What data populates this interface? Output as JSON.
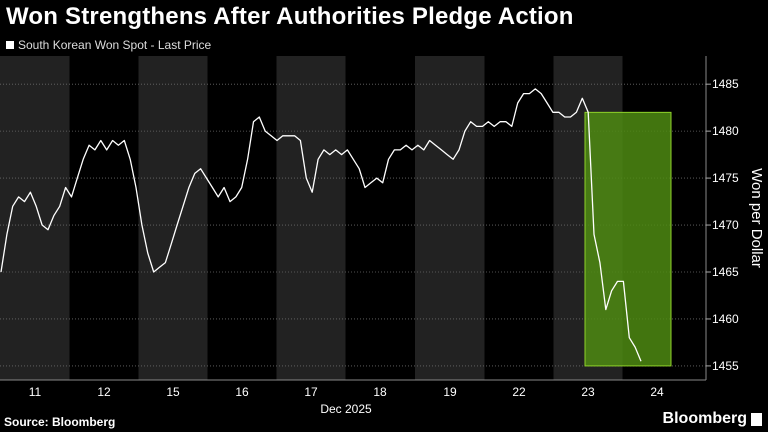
{
  "header": {
    "title": "Won Strengthens After Authorities Pledge Action",
    "legend_label": "South Korean Won Spot - Last Price"
  },
  "footer": {
    "source": "Source: Bloomberg",
    "brand": "Bloomberg"
  },
  "colors": {
    "background": "#000000",
    "line": "#ffffff",
    "shade_band": "#222222",
    "highlight_fill": "#4e8a12",
    "highlight_border": "#8fd22a"
  },
  "chart_data": {
    "type": "line",
    "series": [
      {
        "name": "South Korean Won Spot - Last Price",
        "values": [
          1465,
          1469,
          1472,
          1473,
          1472.5,
          1473.5,
          1472,
          1470,
          1469.5,
          1471,
          1472,
          1474,
          1473,
          1475,
          1477,
          1478.5,
          1478,
          1479,
          1478,
          1479,
          1478.5,
          1479,
          1477,
          1474,
          1470,
          1467,
          1465,
          1465.5,
          1466,
          1468,
          1470,
          1472,
          1474,
          1475.5,
          1476,
          1475,
          1474,
          1473,
          1474,
          1472.5,
          1473,
          1474,
          1477,
          1481,
          1481.5,
          1480,
          1479.5,
          1479,
          1479.5,
          1479.5,
          1479.5,
          1479,
          1475,
          1473.5,
          1477,
          1478,
          1477.5,
          1478,
          1477.5,
          1478,
          1477,
          1476,
          1474,
          1474.5,
          1475,
          1474.5,
          1477,
          1478,
          1478,
          1478.5,
          1478,
          1478.5,
          1478,
          1479,
          1478.5,
          1478,
          1477.5,
          1477,
          1478,
          1480,
          1481,
          1480.5,
          1480.5,
          1481,
          1480.5,
          1481,
          1481,
          1480.5,
          1483,
          1484,
          1484,
          1484.5,
          1484,
          1483,
          1482,
          1482,
          1481.5,
          1481.5,
          1482,
          1483.5,
          1482,
          1469,
          1466,
          1461,
          1463,
          1464,
          1464,
          1458,
          1457,
          1455.5
        ]
      }
    ],
    "x_tick_labels": [
      "11",
      "12",
      "15",
      "16",
      "17",
      "18",
      "19",
      "22",
      "23",
      "24"
    ],
    "x_axis_label": "Dec 2025",
    "y_ticks": [
      1455,
      1460,
      1465,
      1470,
      1475,
      1480,
      1485
    ],
    "ylabel": "Won per Dollar",
    "ylim": [
      1453.5,
      1488
    ],
    "y_axis_position": "right",
    "grid": "horizontal dotted",
    "alternating_day_shading": true,
    "highlight": {
      "x_from": "23",
      "x_to": "24",
      "y_from": 1455,
      "y_to": 1482
    }
  }
}
